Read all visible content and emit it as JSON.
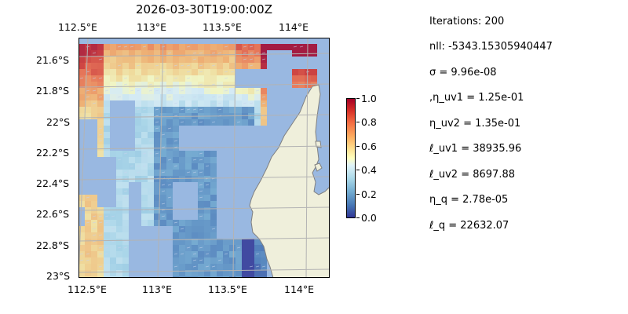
{
  "title": "2026-03-30T19:00:00Z",
  "map": {
    "lon_ticks": [
      "112.5°E",
      "113°E",
      "113.5°E",
      "114°E"
    ],
    "lat_ticks": [
      "21.6°S",
      "21.8°S",
      "22°S",
      "22.2°S",
      "22.4°S",
      "22.6°S",
      "22.8°S",
      "23°S"
    ],
    "colors": {
      "ocean": "#99b8e1",
      "land": "#efefdb",
      "coast": "#808080",
      "grid": "#b3b3b3"
    }
  },
  "colorbar": {
    "ticks": [
      "0.0",
      "0.2",
      "0.4",
      "0.6",
      "0.8",
      "1.0"
    ],
    "colormap": "RdYlBu_r"
  },
  "stats": [
    "Iterations: 200",
    "nll: -5343.15305940447",
    "σ = 9.96e-08",
    ",η_uv1 = 1.25e-01",
    "η_uv2 = 1.35e-01",
    "ℓ_uv1 = 38935.96",
    "ℓ_uv2 = 8697.88",
    "η_q = 2.78e-05",
    "ℓ_q = 22632.07"
  ]
}
